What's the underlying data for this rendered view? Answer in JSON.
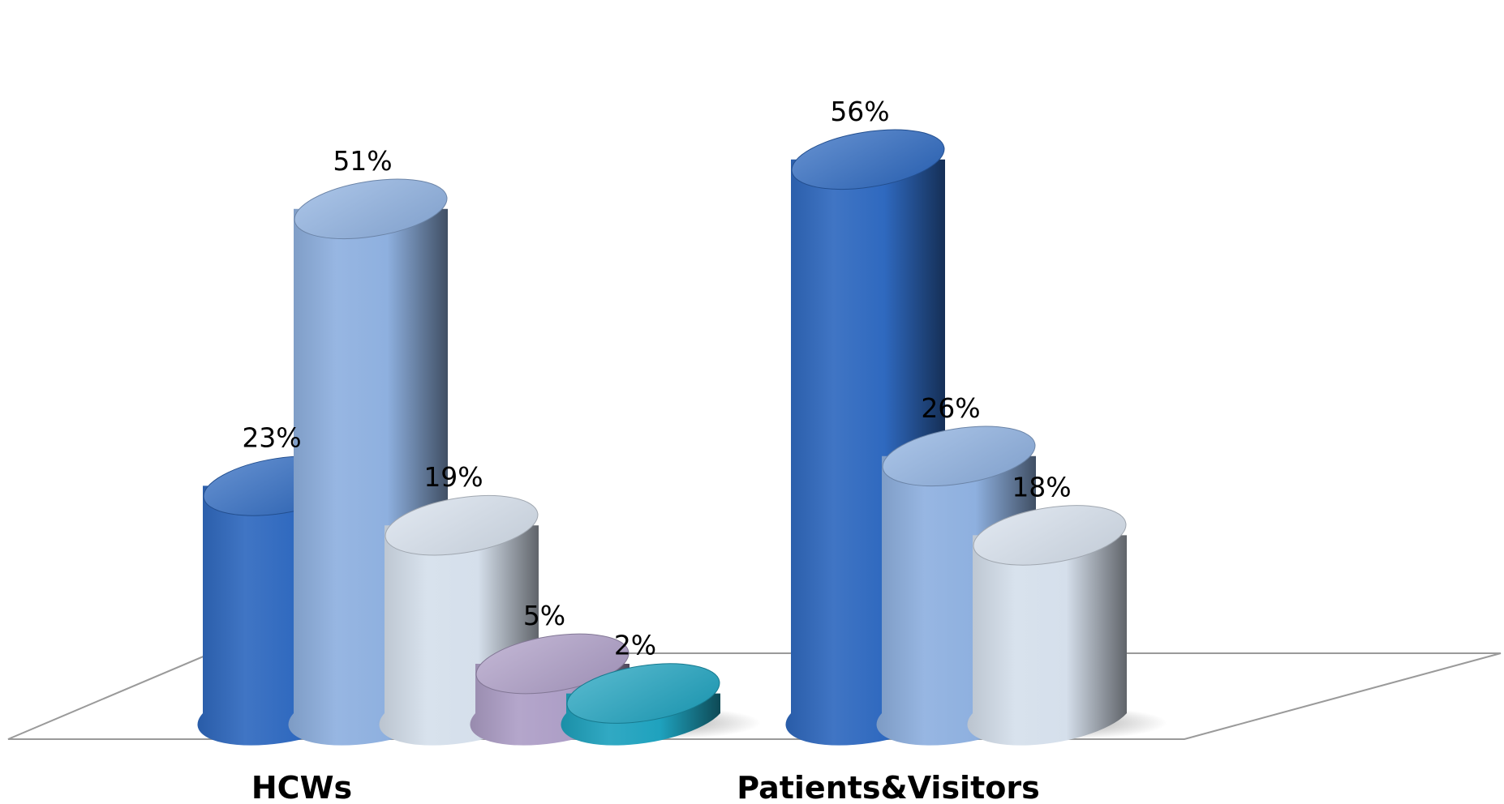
{
  "chart_data": {
    "type": "bar",
    "style": "3d-cylinder",
    "categories": [
      "HCWs",
      "Patients&Visitors"
    ],
    "groups": [
      {
        "category": "HCWs",
        "bars": [
          {
            "value": 23,
            "label": "23%",
            "color": "#2f69bf"
          },
          {
            "value": 51,
            "label": "51%",
            "color": "#8eb0df"
          },
          {
            "value": 19,
            "label": "19%",
            "color": "#d5dfeb"
          },
          {
            "value": 5,
            "label": "5%",
            "color": "#ad9ec6"
          },
          {
            "value": 2,
            "label": "2%",
            "color": "#1fa2be"
          }
        ]
      },
      {
        "category": "Patients&Visitors",
        "bars": [
          {
            "value": 56,
            "label": "56%",
            "color": "#2f69bf"
          },
          {
            "value": 26,
            "label": "26%",
            "color": "#8eb0df"
          },
          {
            "value": 18,
            "label": "18%",
            "color": "#d5dfeb"
          }
        ]
      }
    ],
    "unit": "%",
    "grid": false,
    "legend": "none"
  }
}
